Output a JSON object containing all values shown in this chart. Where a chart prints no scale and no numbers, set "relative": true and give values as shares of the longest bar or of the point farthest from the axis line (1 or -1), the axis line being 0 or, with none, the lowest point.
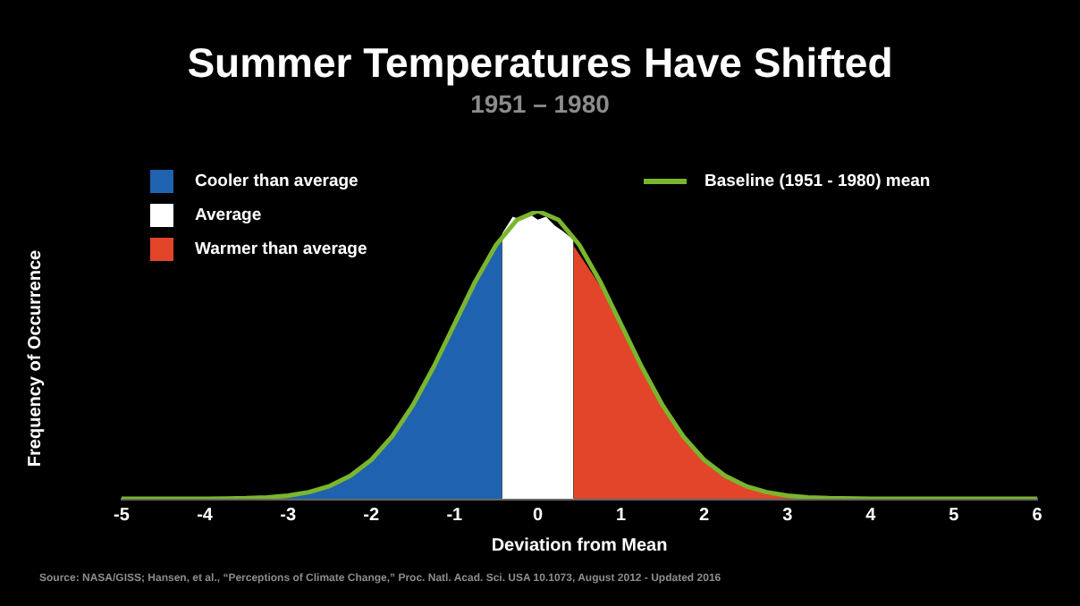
{
  "chart_data": {
    "type": "area",
    "title": "Summer Temperatures Have Shifted",
    "subtitle": "1951 – 1980",
    "xlabel": "Deviation from Mean",
    "ylabel": "Frequency of Occurrence",
    "relative": true,
    "legend": "top",
    "grid": false,
    "xlim": [
      -5,
      6
    ],
    "xticks": [
      -5,
      -4,
      -3,
      -2,
      -1,
      0,
      1,
      2,
      3,
      4,
      5,
      6
    ],
    "series": [
      {
        "name": "Cooler than average",
        "color": "#1f62b0",
        "x": [
          -3,
          -2.75,
          -2.5,
          -2.25,
          -2,
          -1.75,
          -1.5,
          -1.25,
          -1,
          -0.75,
          -0.5,
          -0.43
        ],
        "values": [
          0.01,
          0.025,
          0.05,
          0.085,
          0.14,
          0.22,
          0.33,
          0.47,
          0.62,
          0.76,
          0.88,
          0.9
        ]
      },
      {
        "name": "Average",
        "color": "#ffffff",
        "x": [
          -0.43,
          -0.3,
          -0.2,
          -0.1,
          0,
          0.1,
          0.2,
          0.3,
          0.43
        ],
        "values": [
          0.92,
          0.98,
          0.97,
          0.99,
          0.97,
          0.98,
          0.95,
          0.93,
          0.9
        ]
      },
      {
        "name": "Warmer than average",
        "color": "#e2452a",
        "x": [
          0.43,
          0.75,
          1,
          1.25,
          1.5,
          1.75,
          2,
          2.25,
          2.5,
          2.75,
          3,
          3.2
        ],
        "values": [
          0.88,
          0.74,
          0.6,
          0.45,
          0.32,
          0.21,
          0.13,
          0.08,
          0.045,
          0.02,
          0.01,
          0
        ]
      },
      {
        "name": "Baseline (1951 - 1980) mean",
        "type": "line",
        "color": "#7ab62d",
        "x": [
          -5,
          -4,
          -3.5,
          -3.25,
          -3,
          -2.75,
          -2.5,
          -2.25,
          -2,
          -1.75,
          -1.5,
          -1.25,
          -1,
          -0.75,
          -0.5,
          -0.25,
          0,
          0.25,
          0.5,
          0.75,
          1,
          1.25,
          1.5,
          1.75,
          2,
          2.25,
          2.5,
          2.75,
          3,
          3.25,
          3.5,
          4,
          6
        ],
        "values": [
          0,
          0,
          0.002,
          0.005,
          0.011,
          0.023,
          0.044,
          0.08,
          0.135,
          0.216,
          0.325,
          0.458,
          0.607,
          0.755,
          0.882,
          0.969,
          1,
          0.969,
          0.882,
          0.755,
          0.607,
          0.458,
          0.325,
          0.216,
          0.135,
          0.08,
          0.044,
          0.023,
          0.011,
          0.005,
          0.002,
          0,
          0
        ]
      }
    ],
    "annotations": [
      "Source: NASA/GISS; Hansen, et al., “Perceptions of Climate Change,” Proc. Natl. Acad. Sci. USA 10.1073, August 2012 - Updated 2016"
    ]
  }
}
